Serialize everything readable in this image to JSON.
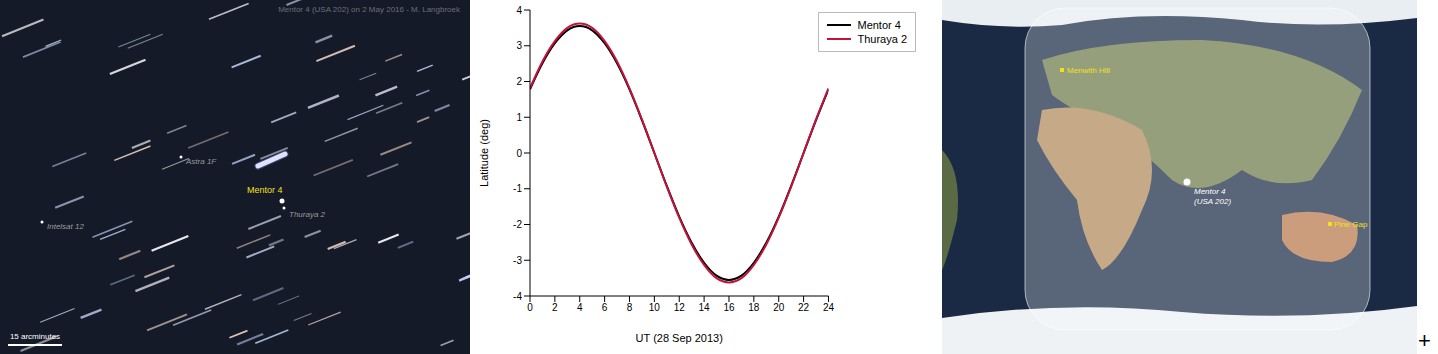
{
  "photo": {
    "caption": "Mentor 4 (USA 202) on 2 May 2016 - M. Langbroek",
    "labels": {
      "astra": "Astra 1F",
      "mentor": "Mentor 4",
      "thuraya": "Thuraya 2",
      "intelsat": "Intelsat 12"
    },
    "scale_bar": "15 arcminutes"
  },
  "chart_data": {
    "type": "line",
    "x_label": "UT (28 Sep 2013)",
    "y_label": "Latitude (deg)",
    "x": [
      0,
      1,
      2,
      3,
      4,
      5,
      6,
      7,
      8,
      9,
      10,
      11,
      12,
      13,
      14,
      15,
      16,
      17,
      18,
      19,
      20,
      21,
      22,
      23,
      24
    ],
    "xlim": [
      0,
      24
    ],
    "xticks": [
      0,
      2,
      4,
      6,
      8,
      10,
      12,
      14,
      16,
      18,
      20,
      22,
      24
    ],
    "ylim": [
      -4,
      4
    ],
    "yticks": [
      -4,
      -3,
      -2,
      -1,
      0,
      1,
      2,
      3,
      4
    ],
    "grid": false,
    "legend": "upper right",
    "series": [
      {
        "name": "Mentor 4",
        "color": "#000000",
        "values": [
          1.78,
          2.51,
          3.07,
          3.43,
          3.55,
          3.43,
          3.07,
          2.51,
          1.78,
          0.92,
          0,
          -0.92,
          -1.78,
          -2.51,
          -3.07,
          -3.43,
          -3.55,
          -3.43,
          -3.07,
          -2.51,
          -1.78,
          -0.92,
          0,
          0.92,
          1.78
        ]
      },
      {
        "name": "Thuraya 2",
        "color": "#c0143c",
        "values": [
          1.81,
          2.56,
          3.13,
          3.5,
          3.62,
          3.5,
          3.13,
          2.56,
          1.81,
          0.94,
          0,
          -0.94,
          -1.81,
          -2.56,
          -3.13,
          -3.5,
          -3.62,
          -3.5,
          -3.13,
          -2.56,
          -1.81,
          -0.94,
          0,
          0.94,
          1.81
        ]
      }
    ]
  },
  "map": {
    "sites": [
      "Menwith Hill",
      "Pine Gap"
    ],
    "satellite": [
      "Mentor 4",
      "(USA 202)"
    ]
  },
  "corner_mark": "+"
}
